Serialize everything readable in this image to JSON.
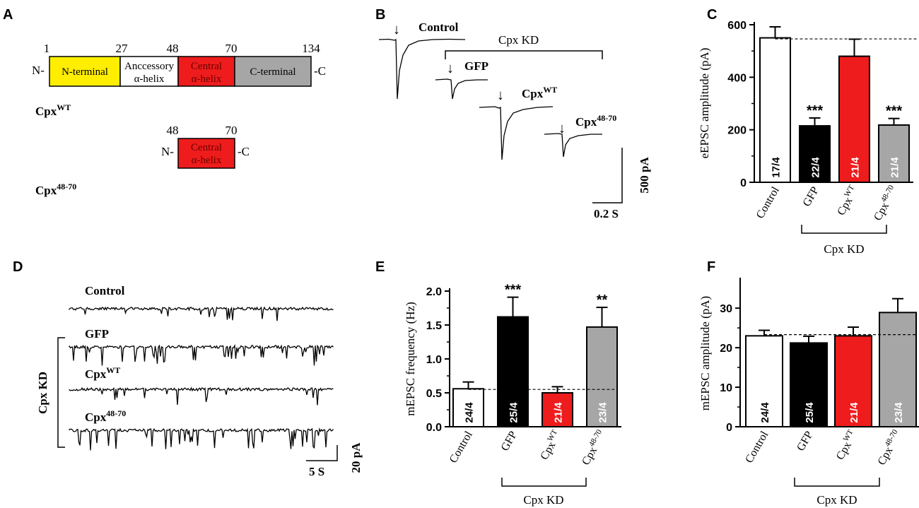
{
  "panels": {
    "A": "A",
    "B": "B",
    "C": "C",
    "D": "D",
    "E": "E",
    "F": "F"
  },
  "panelA": {
    "positions": [
      "1",
      "27",
      "48",
      "70",
      "134"
    ],
    "n_end": "N-",
    "c_end": "-C",
    "domains": [
      "N-terminal",
      "Anccessory",
      "α-helix",
      "Central",
      "α-helix",
      "C-terminal"
    ],
    "cpx_wt_base": "Cpx",
    "cpx_wt_sup": "WT",
    "trunc_positions": [
      "48",
      "70"
    ],
    "trunc_n": "N-",
    "trunc_c": "-C",
    "trunc_domain": [
      "Central",
      "α-helix"
    ],
    "cpx_trunc_base": "Cpx",
    "cpx_trunc_sup": "48-70",
    "colors": {
      "n_terminal": "#ffee00",
      "accessory": "#ffffff",
      "central": "#ee1c1c",
      "c_terminal": "#a6a6a6"
    }
  },
  "panelB": {
    "control": "Control",
    "cpx_kd": "Cpx KD",
    "gfp": "GFP",
    "wt_base": "Cpx",
    "wt_sup": "WT",
    "trunc_base": "Cpx",
    "trunc_sup": "48-70",
    "scale_y": "500 pA",
    "scale_x": "0.2 S",
    "arrow": "↓"
  },
  "panelD": {
    "control": "Control",
    "gfp": "GFP",
    "wt_base": "Cpx",
    "wt_sup": "WT",
    "trunc_base": "Cpx",
    "trunc_sup": "48-70",
    "cpx_kd": "Cpx KD",
    "scale_y": "20 pA",
    "scale_x": "5 S"
  },
  "chart_data": [
    {
      "id": "C",
      "type": "bar",
      "ylabel": "eEPSC amplitude (pA)",
      "ylim": [
        0,
        600
      ],
      "yticks": [
        "0",
        "200",
        "400",
        "600"
      ],
      "categories": [
        "Control",
        "GFP",
        "Cpx",
        "Cpx"
      ],
      "category_sups": [
        "",
        "",
        "WT",
        "48-70"
      ],
      "values": [
        550,
        215,
        480,
        218
      ],
      "errors": [
        42,
        30,
        65,
        25
      ],
      "n_labels": [
        "17/4",
        "22/4",
        "21/4",
        "21/4"
      ],
      "significance": [
        "",
        "***",
        "",
        "***"
      ],
      "colors": [
        "#ffffff",
        "#000000",
        "#ee1c1c",
        "#a6a6a6"
      ],
      "reference_line": 546,
      "group_label": "Cpx KD"
    },
    {
      "id": "E",
      "type": "bar",
      "ylabel": "mEPSC frequency (Hz)",
      "ylim": [
        0,
        2.0
      ],
      "yticks": [
        "0.0",
        "0.5",
        "1.0",
        "1.5",
        "2.0"
      ],
      "categories": [
        "Control",
        "GFP",
        "Cpx",
        "Cpx"
      ],
      "category_sups": [
        "",
        "",
        "WT",
        "48-70"
      ],
      "values": [
        0.56,
        1.62,
        0.5,
        1.47
      ],
      "errors": [
        0.1,
        0.29,
        0.09,
        0.29
      ],
      "n_labels": [
        "24/4",
        "25/4",
        "21/4",
        "23/4"
      ],
      "significance": [
        "",
        "***",
        "",
        "**"
      ],
      "colors": [
        "#ffffff",
        "#000000",
        "#ee1c1c",
        "#a6a6a6"
      ],
      "reference_line": 0.55,
      "group_label": "Cpx KD"
    },
    {
      "id": "F",
      "type": "bar",
      "ylabel": "mEPSC amplitude (pA)",
      "ylim": [
        0,
        37
      ],
      "yticks": [
        "0",
        "10",
        "20",
        "30"
      ],
      "categories": [
        "Control",
        "GFP",
        "Cpx",
        "Cpx"
      ],
      "category_sups": [
        "",
        "",
        "WT",
        "48-70"
      ],
      "values": [
        23,
        21.2,
        23,
        28.9
      ],
      "errors": [
        1.4,
        1.7,
        2.2,
        3.5
      ],
      "n_labels": [
        "24/4",
        "25/4",
        "21/4",
        "23/4"
      ],
      "significance": [
        "",
        "",
        "",
        ""
      ],
      "colors": [
        "#ffffff",
        "#000000",
        "#ee1c1c",
        "#a6a6a6"
      ],
      "reference_line": 23.3,
      "group_label": "Cpx KD"
    }
  ]
}
